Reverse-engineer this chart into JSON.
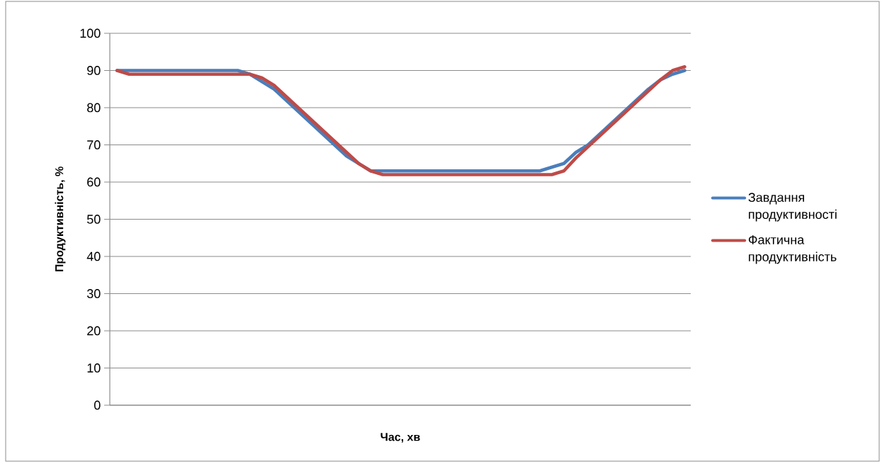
{
  "chart_data": {
    "type": "line",
    "xlabel": "Час, хв",
    "ylabel": "Продуктивність, %",
    "categories": [
      null,
      null,
      null,
      null,
      null,
      null,
      null,
      null,
      null,
      null,
      null,
      null,
      null,
      null,
      null,
      null,
      null,
      null,
      null,
      null,
      null,
      null,
      null,
      null,
      null,
      null,
      null,
      null,
      null,
      null,
      null,
      null,
      null,
      null,
      null,
      null,
      null,
      null,
      null,
      null,
      null,
      null,
      null,
      null,
      null,
      null,
      null,
      null
    ],
    "series": [
      {
        "name": "Завдання продуктивності",
        "color": "#4a7ebb",
        "values": [
          90,
          90,
          90,
          90,
          90,
          90,
          90,
          90,
          90,
          90,
          90,
          89,
          87,
          85,
          82,
          79,
          76,
          73,
          70,
          67,
          65,
          63,
          63,
          63,
          63,
          63,
          63,
          63,
          63,
          63,
          63,
          63,
          63,
          63,
          63,
          63,
          64,
          65,
          68,
          70,
          73,
          76,
          79,
          82,
          85,
          87.5,
          89,
          90
        ]
      },
      {
        "name": "Фактична продуктивність",
        "color": "#be4b48",
        "values": [
          90,
          89,
          89,
          89,
          89,
          89,
          89,
          89,
          89,
          89,
          89,
          89,
          88,
          86,
          83,
          80,
          77,
          74,
          71,
          68,
          65,
          63,
          62,
          62,
          62,
          62,
          62,
          62,
          62,
          62,
          62,
          62,
          62,
          62,
          62,
          62,
          62,
          63,
          66.5,
          69.5,
          72.5,
          75.5,
          78.5,
          81.5,
          84.5,
          87.5,
          90,
          91
        ]
      }
    ],
    "ylim": [
      0,
      100
    ],
    "yticks": [
      0,
      10,
      20,
      30,
      40,
      50,
      60,
      70,
      80,
      90,
      100
    ],
    "tick_labels": "y",
    "grid": "y",
    "legend": "right",
    "marker": "none",
    "line_style": "solid"
  }
}
